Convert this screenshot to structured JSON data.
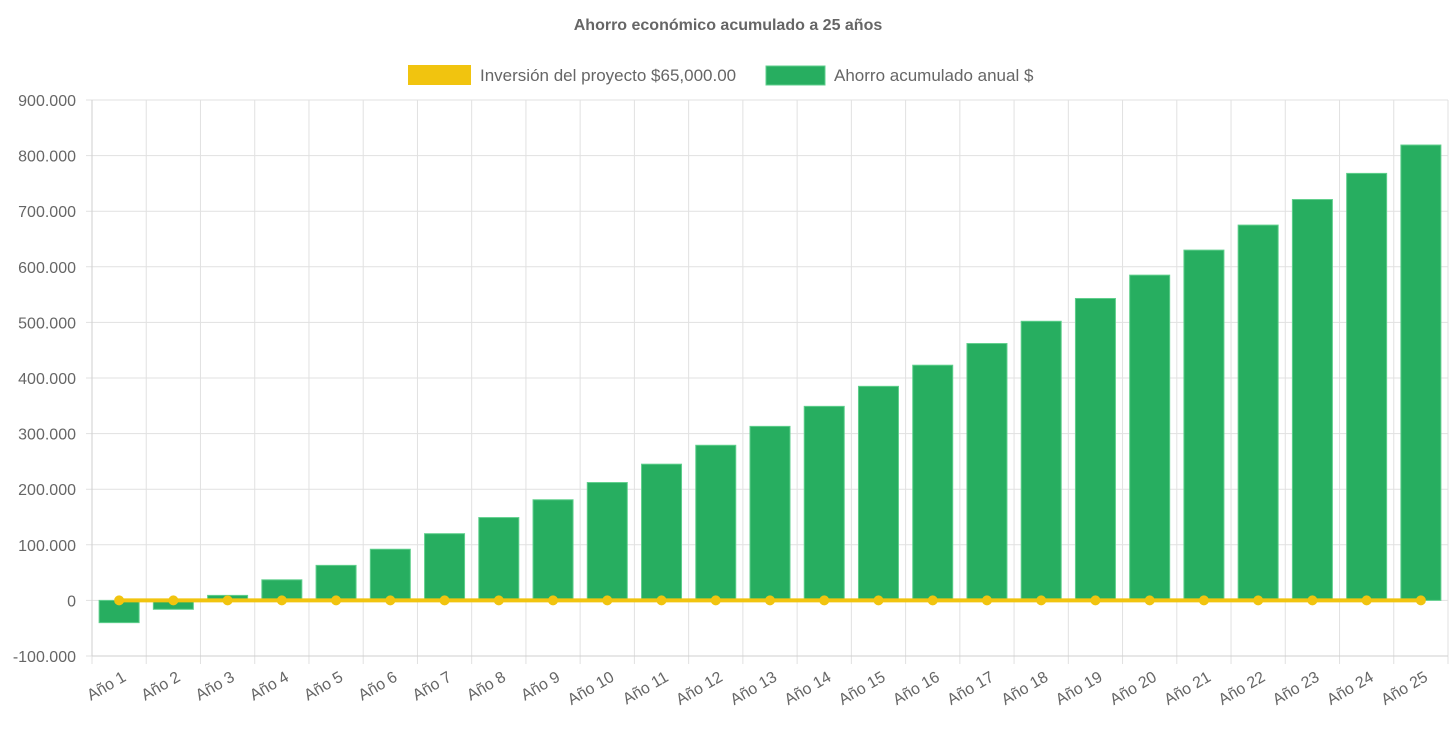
{
  "chart_data": {
    "type": "bar",
    "title": "Ahorro económico acumulado a 25 años",
    "xlabel": "",
    "ylabel": "",
    "ylim": [
      -100000,
      900000
    ],
    "yticks": [
      -100000,
      0,
      100000,
      200000,
      300000,
      400000,
      500000,
      600000,
      700000,
      800000,
      900000
    ],
    "ytick_labels": [
      "-100.000",
      "0",
      "100.000",
      "200.000",
      "300.000",
      "400.000",
      "500.000",
      "600.000",
      "700.000",
      "800.000",
      "900.000"
    ],
    "grid": true,
    "legend_placement": "top",
    "categories": [
      "Año 1",
      "Año 2",
      "Año 3",
      "Año 4",
      "Año 5",
      "Año 6",
      "Año 7",
      "Año 8",
      "Año 9",
      "Año 10",
      "Año 11",
      "Año 12",
      "Año 13",
      "Año 14",
      "Año 15",
      "Año 16",
      "Año 17",
      "Año 18",
      "Año 19",
      "Año 20",
      "Año 21",
      "Año 22",
      "Año 23",
      "Año 24",
      "Año 25"
    ],
    "series": [
      {
        "name": "Inversión del proyecto $65,000.00",
        "type": "line",
        "color": "#f1c40f",
        "values": [
          0,
          0,
          0,
          0,
          0,
          0,
          0,
          0,
          0,
          0,
          0,
          0,
          0,
          0,
          0,
          0,
          0,
          0,
          0,
          0,
          0,
          0,
          0,
          0,
          0
        ]
      },
      {
        "name": "Ahorro acumulado anual $",
        "type": "bar",
        "color": "#27ae60",
        "values": [
          -40000,
          -16000,
          9000,
          37000,
          63000,
          92000,
          120000,
          149000,
          181000,
          212000,
          245000,
          279000,
          313000,
          349000,
          385000,
          423000,
          462000,
          502000,
          543000,
          585000,
          630000,
          675000,
          721000,
          768000,
          819000
        ]
      }
    ]
  }
}
